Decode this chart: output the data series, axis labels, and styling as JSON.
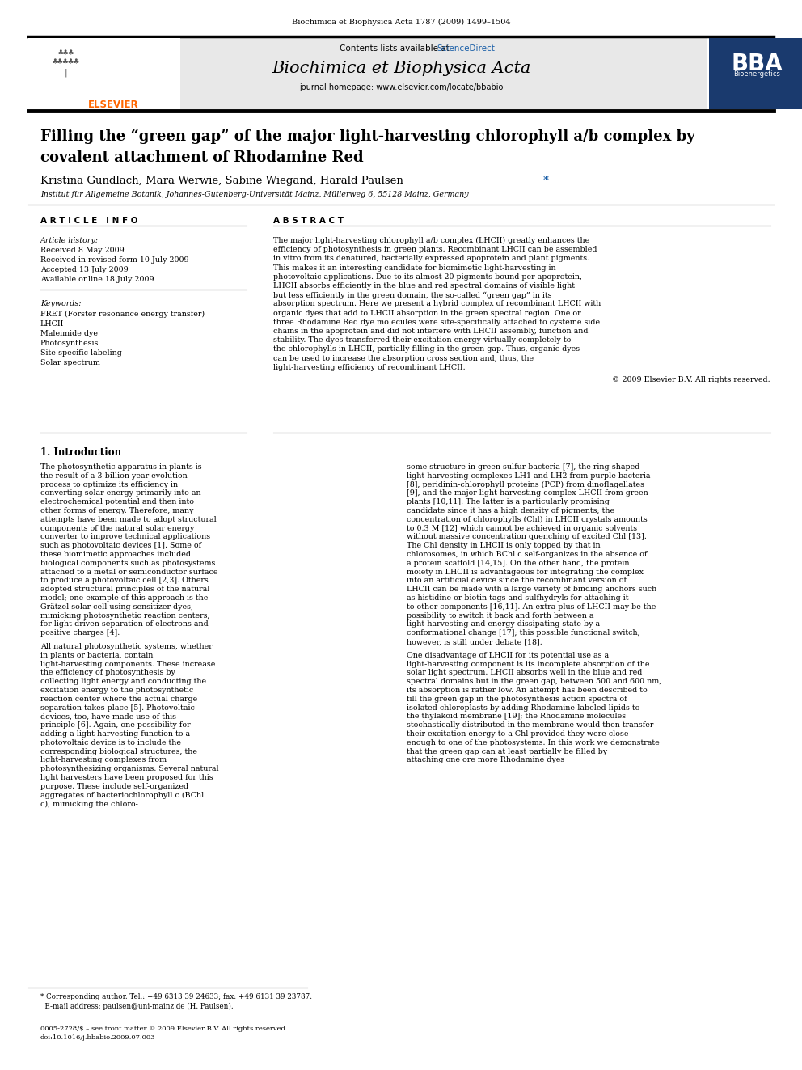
{
  "journal_ref": "Biochimica et Biophysica Acta 1787 (2009) 1499–1504",
  "journal_name": "Biochimica et Biophysica Acta",
  "journal_homepage": "journal homepage: www.elsevier.com/locate/bbabio",
  "contents_line": "Contents lists available at ",
  "sciencedirect": "ScienceDirect",
  "title_line1": "Filling the “green gap” of the major light-harvesting chlorophyll a/b complex by",
  "title_line2": "covalent attachment of Rhodamine Red",
  "authors_pre": "Kristina Gundlach, Mara Werwie, Sabine Wiegand, Harald Paulsen ",
  "affiliation": "Institut für Allgemeine Botanik, Johannes-Gutenberg-Universität Mainz, Müllerweg 6, 55128 Mainz, Germany",
  "article_info_header": "A R T I C L E   I N F O",
  "abstract_header": "A B S T R A C T",
  "article_history_label": "Article history:",
  "received": "Received 8 May 2009",
  "received_revised": "Received in revised form 10 July 2009",
  "accepted": "Accepted 13 July 2009",
  "available": "Available online 18 July 2009",
  "keywords_label": "Keywords:",
  "keywords": [
    "FRET (Förster resonance energy transfer)",
    "LHCII",
    "Maleimide dye",
    "Photosynthesis",
    "Site-specific labeling",
    "Solar spectrum"
  ],
  "abstract_text": "The major light-harvesting chlorophyll a/b complex (LHCII) greatly enhances the efficiency of photosynthesis in green plants. Recombinant LHCII can be assembled in vitro from its denatured, bacterially expressed apoprotein and plant pigments. This makes it an interesting candidate for biomimetic light-harvesting in photovoltaic applications. Due to its almost 20 pigments bound per apoprotein, LHCII absorbs efficiently in the blue and red spectral domains of visible light but less efficiently in the green domain, the so-called “green gap” in its absorption spectrum. Here we present a hybrid complex of recombinant LHCII with organic dyes that add to LHCII absorption in the green spectral region. One or three Rhodamine Red dye molecules were site-specifically attached to cysteine side chains in the apoprotein and did not interfere with LHCII assembly, function and stability. The dyes transferred their excitation energy virtually completely to the chlorophylls in LHCII, partially filling in the green gap. Thus, organic dyes can be used to increase the absorption cross section and, thus, the light-harvesting efficiency of recombinant LHCII.",
  "copyright": "© 2009 Elsevier B.V. All rights reserved.",
  "intro_header": "1. Introduction",
  "intro_text1": "The photosynthetic apparatus in plants is the result of a 3-billion year evolution process to optimize its efficiency in converting solar energy primarily into an electrochemical potential and then into other forms of energy. Therefore, many attempts have been made to adopt structural components of the natural solar energy converter to improve technical applications such as photovoltaic devices [1]. Some of these biomimetic approaches included biological components such as photosystems attached to a metal or semiconductor surface to produce a photovoltaic cell [2,3]. Others adopted structural principles of the natural model; one example of this approach is the Grätzel solar cell using sensitizer dyes, mimicking photosynthetic reaction centers, for light-driven separation of electrons and positive charges [4].",
  "intro_text2": "All natural photosynthetic systems, whether in plants or bacteria, contain light-harvesting components. These increase the efficiency of photosynthesis by collecting light energy and conducting the excitation energy to the photosynthetic reaction center where the actual charge separation takes place [5]. Photovoltaic devices, too, have made use of this principle [6]. Again, one possibility for adding a light-harvesting function to a photovoltaic device is to include the corresponding biological structures, the light-harvesting complexes from photosynthesizing organisms. Several natural light harvesters have been proposed for this purpose. These include self-organized aggregates of bacteriochlorophyll c (BChl c), mimicking the chloro-",
  "right_col_text1": "some structure in green sulfur bacteria [7], the ring-shaped light-harvesting complexes LH1 and LH2 from purple bacteria [8], peridinin-chlorophyll proteins (PCP) from dinoflagellates [9], and the major light-harvesting complex LHCII from green plants [10,11]. The latter is a particularly promising candidate since it has a high density of pigments; the concentration of chlorophylls (Chl) in LHCII crystals amounts to 0.3 M [12] which cannot be achieved in organic solvents without massive concentration quenching of excited Chl [13]. The Chl density in LHCII is only topped by that in chlorosomes, in which BChl c self-organizes in the absence of a protein scaffold [14,15]. On the other hand, the protein moiety in LHCII is advantageous for integrating the complex into an artificial device since the recombinant version of LHCII can be made with a large variety of binding anchors such as histidine or biotin tags and sulfhydryls for attaching it to other components [16,11]. An extra plus of LHCII may be the possibility to switch it back and forth between a light-harvesting and energy dissipating state by a conformational change [17]; this possible functional switch, however, is still under debate [18].",
  "right_col_text2": "One disadvantage of LHCII for its potential use as a light-harvesting component is its incomplete absorption of the solar light spectrum. LHCII absorbs well in the blue and red spectral domains but in the green gap, between 500 and 600 nm, its absorption is rather low. An attempt has been described to fill the green gap in the photosynthesis action spectra of isolated chloroplasts by adding Rhodamine-labeled lipids to the thylakoid membrane [19]; the Rhodamine molecules stochastically distributed in the membrane would then transfer their excitation energy to a Chl provided they were close enough to one of the photosystems. In this work we demonstrate that the green gap can at least partially be filled by attaching one ore more Rhodamine dyes",
  "footnote_line1": "* Corresponding author. Tel.: +49 6313 39 24633; fax: +49 6131 39 23787.",
  "footnote_line2": "  E-mail address: paulsen@uni-mainz.de (H. Paulsen).",
  "bottom_line1": "0005-2728/$ – see front matter © 2009 Elsevier B.V. All rights reserved.",
  "bottom_line2": "doi:10.1016/j.bbabio.2009.07.003",
  "bg_color": "#ffffff",
  "header_bg": "#e8e8e8",
  "blue_color": "#1a5fa8",
  "orange_color": "#FF6600",
  "bba_bg": "#1a3a6e"
}
